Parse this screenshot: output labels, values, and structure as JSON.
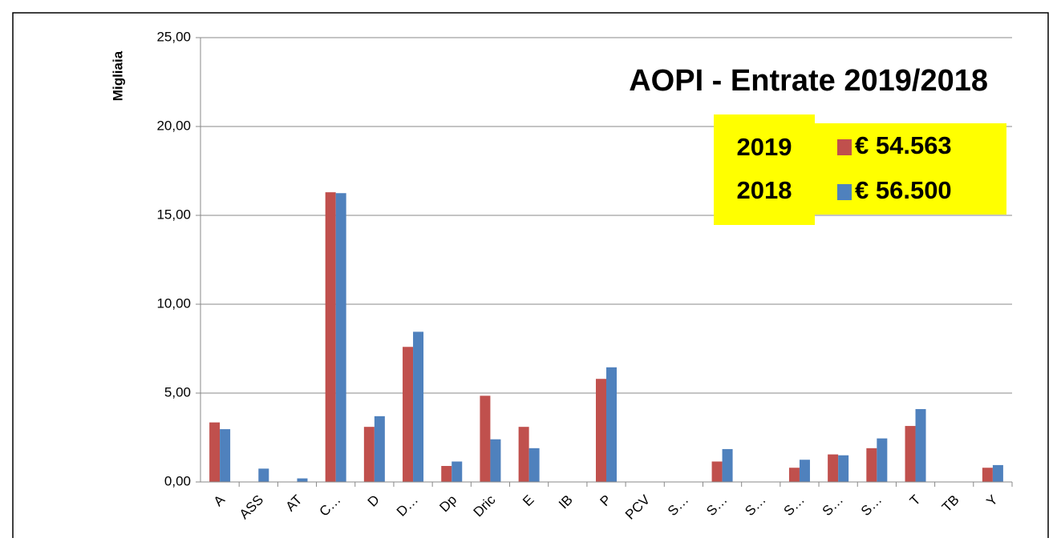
{
  "chart_data": {
    "type": "bar",
    "title": "AOPI - Entrate 2019/2018",
    "y_label": "Migliaia",
    "legend_years": [
      "2019",
      "2018"
    ],
    "categories": [
      "A",
      "ASS",
      "AT",
      "C…",
      "D",
      "D…",
      "Dp",
      "Dric",
      "E",
      "IB",
      "P",
      "PCV",
      "S…",
      "S…",
      "S…",
      "S…",
      "S…",
      "S…",
      "T",
      "TB",
      "Y"
    ],
    "series": [
      {
        "name": "€ 54.563",
        "color": "#c0504d",
        "values": [
          3.35,
          0,
          0,
          16.3,
          3.1,
          7.6,
          0.9,
          4.85,
          3.1,
          0,
          5.8,
          0,
          0,
          1.15,
          0,
          0.8,
          1.55,
          1.9,
          3.15,
          0,
          0.8
        ]
      },
      {
        "name": "€ 56.500",
        "color": "#4f81bd",
        "values": [
          2.97,
          0.75,
          0.2,
          16.25,
          3.7,
          8.45,
          1.15,
          2.4,
          1.9,
          0,
          6.45,
          0,
          0,
          1.85,
          0,
          1.25,
          1.5,
          2.45,
          4.1,
          0,
          0.95
        ]
      }
    ],
    "ylim": [
      0,
      25
    ],
    "yticks": [
      {
        "value": 0,
        "label": "0,00"
      },
      {
        "value": 5,
        "label": "5,00"
      },
      {
        "value": 10,
        "label": "10,00"
      },
      {
        "value": 15,
        "label": "15,00"
      },
      {
        "value": 20,
        "label": "20,00"
      },
      {
        "value": 25,
        "label": "25,00"
      }
    ],
    "grid": true,
    "legend_background": "#ffff00"
  }
}
